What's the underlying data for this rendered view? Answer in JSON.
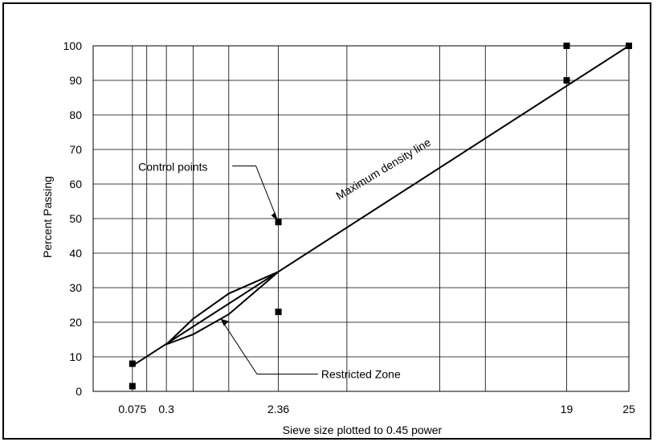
{
  "chart_data": {
    "type": "line",
    "xlabel": "Sieve size plotted to 0.45 power",
    "ylabel": "Percent Passing",
    "x_scale": "power-0.45",
    "xlim": [
      0,
      25
    ],
    "ylim": [
      0,
      100
    ],
    "grid": true,
    "x_ticks": [
      {
        "value": 0.075,
        "label": "0.075"
      },
      {
        "value": 0.3,
        "label": "0.3"
      },
      {
        "value": 2.36,
        "label": "2.36"
      },
      {
        "value": 19,
        "label": "19"
      },
      {
        "value": 25,
        "label": "25"
      }
    ],
    "x_gridlines": [
      0.075,
      0.15,
      0.3,
      0.6,
      1.18,
      2.36,
      4.75,
      9.5,
      12.5,
      19,
      25
    ],
    "y_ticks": [
      0,
      10,
      20,
      30,
      40,
      50,
      60,
      70,
      80,
      90,
      100
    ],
    "series": [
      {
        "type": "line",
        "x": [
          0.075,
          25
        ],
        "y": [
          7.4,
          100
        ]
      },
      {
        "type": "line",
        "x": [
          0.3,
          0.6,
          1.18,
          2.36
        ],
        "y": [
          13.6,
          21,
          28.3,
          34.6
        ]
      },
      {
        "type": "line",
        "x": [
          0.3,
          0.6,
          1.18,
          2.36
        ],
        "y": [
          13.6,
          16.5,
          22.3,
          34.6
        ]
      },
      {
        "type": "scatter",
        "x": [
          0.075,
          0.075,
          2.36,
          2.36,
          19,
          19,
          25
        ],
        "y": [
          8,
          1.5,
          49,
          23,
          90,
          100,
          100
        ]
      }
    ],
    "annotations": [
      {
        "text": "Control points",
        "x": 0.6,
        "y": 65
      },
      {
        "text": "Restricted Zone",
        "x": 4.75,
        "y": 5
      },
      {
        "text": "Maximum density line",
        "x": 6.5,
        "y": 62
      }
    ]
  }
}
